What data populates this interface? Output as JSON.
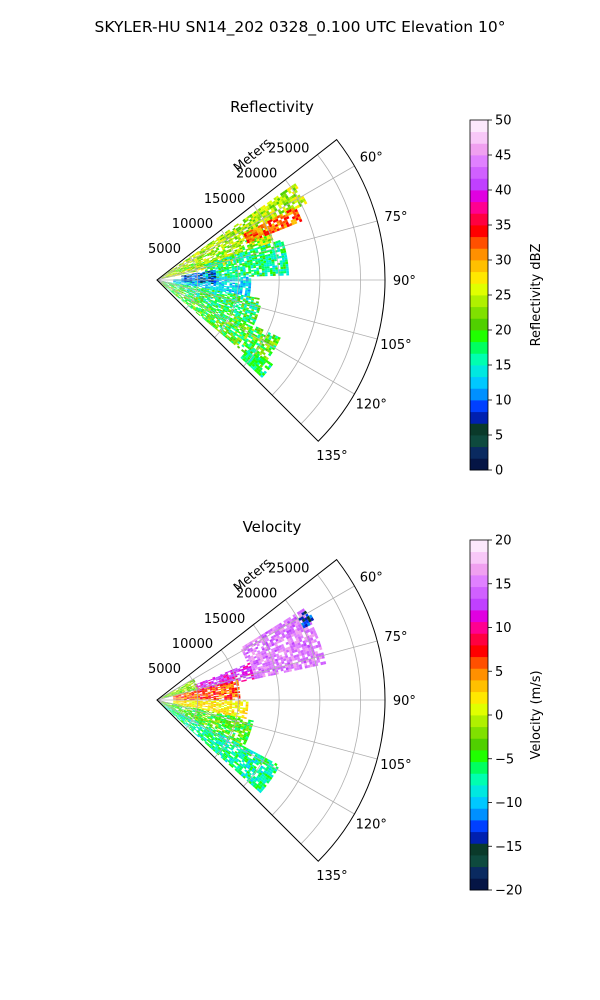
{
  "figure": {
    "title": "SKYLER-HU  SN14_202  0328_0.100 UTC Elevation 10°"
  },
  "chart_data": [
    {
      "type": "heatmap",
      "subtype": "polar-sector",
      "title": "Reflectivity",
      "radial_label": "Meters",
      "radial_ticks": [
        5000,
        10000,
        15000,
        20000,
        25000
      ],
      "radial_tick_labels": [
        "5000",
        "10000",
        "15000",
        "20000",
        "25000"
      ],
      "rmax": 28000,
      "angle_ticks": [
        60,
        75,
        90,
        105,
        120,
        135
      ],
      "angle_tick_labels": [
        "60°",
        "75°",
        "90°",
        "105°",
        "120°",
        "135°"
      ],
      "sector_deg": [
        52,
        135
      ],
      "grid": true,
      "colorbar": {
        "label": "Reflectivity dBZ",
        "min": 0,
        "max": 50,
        "ticks": [
          0,
          5,
          10,
          15,
          20,
          25,
          30,
          35,
          40,
          45,
          50
        ],
        "tick_labels": [
          "0",
          "5",
          "10",
          "15",
          "20",
          "25",
          "30",
          "35",
          "40",
          "45",
          "50"
        ],
        "colors": [
          "#051545",
          "#0a2a60",
          "#0e4a3e",
          "#0a3a2a",
          "#0020b0",
          "#0040ff",
          "#0090ff",
          "#00c8ff",
          "#00e8e0",
          "#00ffb0",
          "#00ff60",
          "#20ff00",
          "#50d000",
          "#80e000",
          "#b0f000",
          "#e0ff00",
          "#ffe800",
          "#ffc000",
          "#ff9000",
          "#ff5000",
          "#ff0000",
          "#ff0040",
          "#ff0090",
          "#e000e0",
          "#c040ff",
          "#d060ff",
          "#e080ff",
          "#f0a0f0",
          "#f8c8f8",
          "#fce8fc"
        ]
      },
      "field_regions": [
        {
          "a0": 55,
          "a1": 63,
          "r0": 600,
          "r1": 20500,
          "v": 24,
          "noise": 4
        },
        {
          "a0": 63,
          "a1": 72,
          "r0": 600,
          "r1": 15000,
          "v": 23,
          "noise": 5
        },
        {
          "a0": 70,
          "a1": 78,
          "r0": 600,
          "r1": 10000,
          "v": 25,
          "noise": 5
        },
        {
          "a0": 62,
          "a1": 68,
          "r0": 12000,
          "r1": 19000,
          "v": 32,
          "noise": 3
        },
        {
          "a0": 72,
          "a1": 88,
          "r0": 6000,
          "r1": 16000,
          "v": 17,
          "noise": 4
        },
        {
          "a0": 88,
          "a1": 100,
          "r0": 2000,
          "r1": 11500,
          "v": 13,
          "noise": 3
        },
        {
          "a0": 80,
          "a1": 94,
          "r0": 3000,
          "r1": 7000,
          "v": 9,
          "noise": 4
        },
        {
          "a0": 100,
          "a1": 115,
          "r0": 600,
          "r1": 13000,
          "v": 18,
          "noise": 5
        },
        {
          "a0": 115,
          "a1": 130,
          "r0": 600,
          "r1": 16500,
          "v": 20,
          "noise": 5
        },
        {
          "a0": 126,
          "a1": 133,
          "r0": 14000,
          "r1": 17500,
          "v": 17,
          "noise": 3
        }
      ]
    },
    {
      "type": "heatmap",
      "subtype": "polar-sector",
      "title": "Velocity",
      "radial_label": "Meters",
      "radial_ticks": [
        5000,
        10000,
        15000,
        20000,
        25000
      ],
      "radial_tick_labels": [
        "5000",
        "10000",
        "15000",
        "20000",
        "25000"
      ],
      "rmax": 28000,
      "angle_ticks": [
        60,
        75,
        90,
        105,
        120,
        135
      ],
      "angle_tick_labels": [
        "60°",
        "75°",
        "90°",
        "105°",
        "120°",
        "135°"
      ],
      "sector_deg": [
        52,
        135
      ],
      "grid": true,
      "colorbar": {
        "label": "Velocity (m/s)",
        "min": -20,
        "max": 20,
        "ticks": [
          -20,
          -15,
          -10,
          -5,
          0,
          5,
          10,
          15,
          20
        ],
        "tick_labels": [
          "−20",
          "−15",
          "−10",
          "−5",
          "0",
          "5",
          "10",
          "15",
          "20"
        ],
        "colors": [
          "#051545",
          "#0a2a60",
          "#0e4a3e",
          "#0a3a2a",
          "#0020b0",
          "#0040ff",
          "#0090ff",
          "#00c8ff",
          "#00e8e0",
          "#00ffb0",
          "#00ff60",
          "#20ff00",
          "#50d000",
          "#80e000",
          "#b0f000",
          "#e0ff00",
          "#ffe800",
          "#ffc000",
          "#ff9000",
          "#ff5000",
          "#ff0000",
          "#ff0040",
          "#ff0090",
          "#e000e0",
          "#c040ff",
          "#d060ff",
          "#e080ff",
          "#f0a0f0",
          "#f8c8f8",
          "#fce8fc"
        ]
      },
      "field_regions": [
        {
          "a0": 58,
          "a1": 78,
          "r0": 12000,
          "r1": 21000,
          "v": 15,
          "noise": 2
        },
        {
          "a0": 59,
          "a1": 64,
          "r0": 20000,
          "r1": 21500,
          "v": -14,
          "noise": 3
        },
        {
          "a0": 68,
          "a1": 78,
          "r0": 5000,
          "r1": 12000,
          "v": 12,
          "noise": 2
        },
        {
          "a0": 76,
          "a1": 90,
          "r0": 2000,
          "r1": 10000,
          "v": 6,
          "noise": 3
        },
        {
          "a0": 60,
          "a1": 76,
          "r0": 600,
          "r1": 5000,
          "v": -2,
          "noise": 3
        },
        {
          "a0": 90,
          "a1": 102,
          "r0": 2000,
          "r1": 11000,
          "v": 2,
          "noise": 2
        },
        {
          "a0": 102,
          "a1": 118,
          "r0": 600,
          "r1": 12000,
          "v": -4,
          "noise": 3
        },
        {
          "a0": 118,
          "a1": 132,
          "r0": 600,
          "r1": 17000,
          "v": -7,
          "noise": 3
        }
      ]
    }
  ]
}
